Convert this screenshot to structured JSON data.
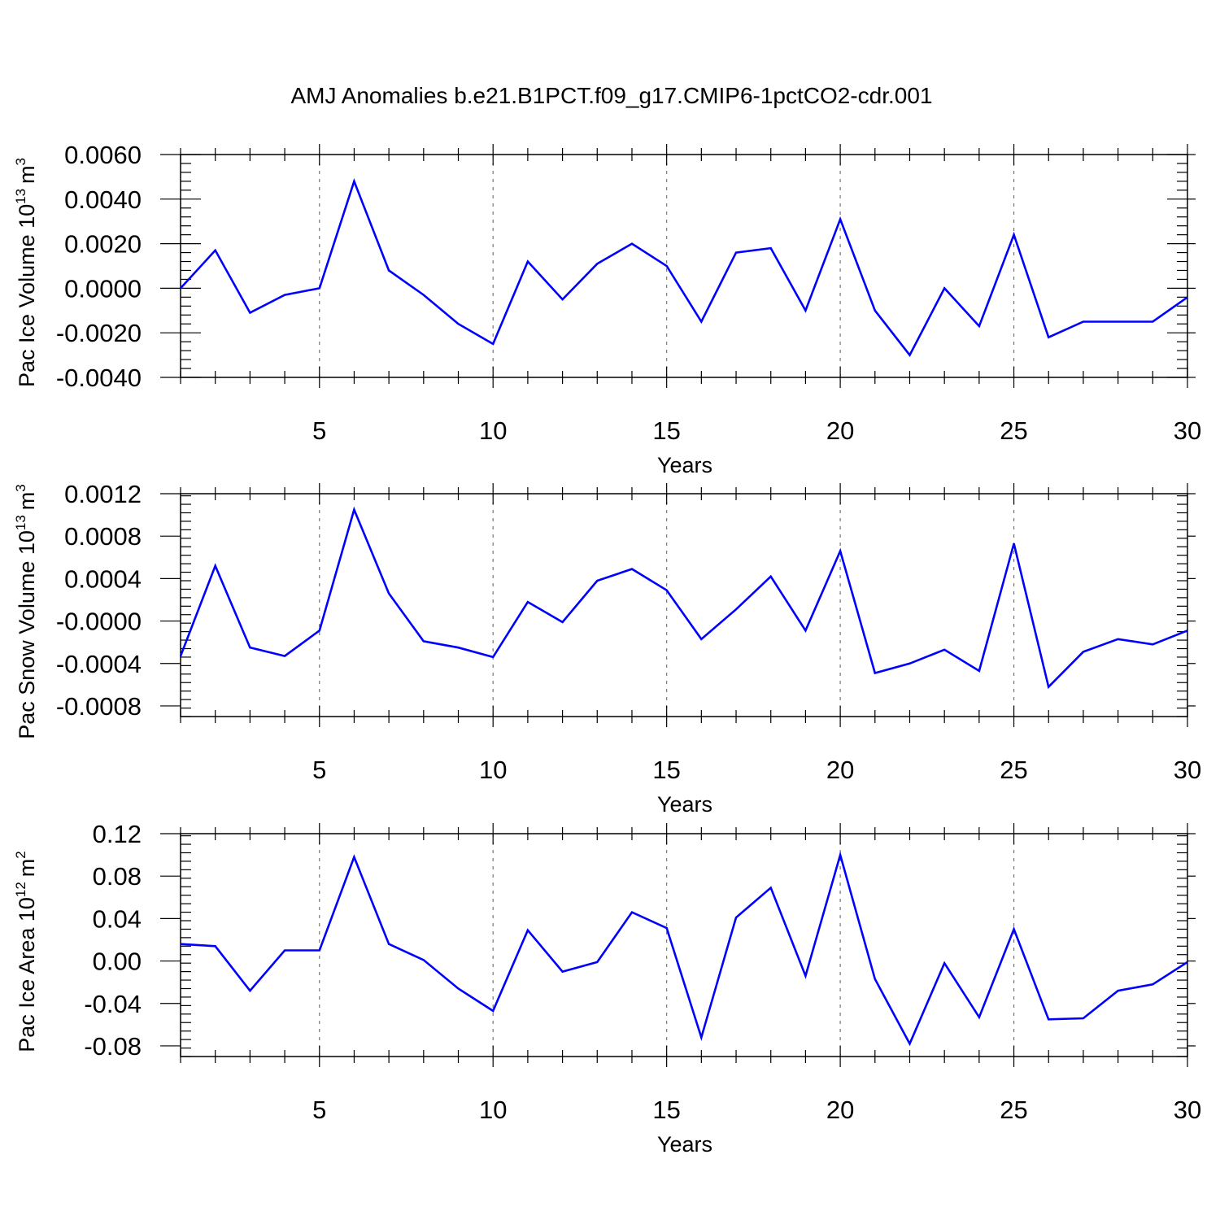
{
  "title": "AMJ Anomalies b.e21.B1PCT.f09_g17.CMIP6-1pctCO2-cdr.001",
  "line_color": "#0000ff",
  "chart_data": [
    {
      "type": "line",
      "ylabel_base": "Pac Ice Volume 10",
      "ylabel_exp": "13",
      "ylabel_unit": "m",
      "ylabel_unit_exp": "3",
      "xlabel": "Years",
      "xlim": [
        1,
        30
      ],
      "ylim": [
        -0.004,
        0.006
      ],
      "xticks": [
        5,
        10,
        15,
        20,
        25,
        30
      ],
      "xtick_labels": [
        "5",
        "10",
        "15",
        "20",
        "25",
        "30"
      ],
      "yticks": [
        -0.004,
        -0.002,
        0.0,
        0.002,
        0.004,
        0.006
      ],
      "ytick_labels": [
        "-0.0040",
        "-0.0020",
        "0.0000",
        "0.0020",
        "0.0040",
        "0.0060"
      ],
      "grid": "vertical dashed at major x ticks",
      "x": [
        1,
        2,
        3,
        4,
        5,
        6,
        7,
        8,
        9,
        10,
        11,
        12,
        13,
        14,
        15,
        16,
        17,
        18,
        19,
        20,
        21,
        22,
        23,
        24,
        25,
        26,
        27,
        28,
        29,
        30
      ],
      "values": [
        0.0,
        0.0017,
        -0.0011,
        -0.0003,
        0.0,
        0.0048,
        0.0008,
        -0.0003,
        -0.0016,
        -0.0025,
        0.0012,
        -0.0005,
        0.0011,
        0.002,
        0.001,
        -0.0015,
        0.0016,
        0.0018,
        -0.001,
        0.0031,
        -0.001,
        -0.003,
        0.0,
        -0.0017,
        0.0024,
        -0.0022,
        -0.0015,
        -0.0015,
        -0.0015,
        -0.0004
      ]
    },
    {
      "type": "line",
      "ylabel_base": "Pac Snow Volume 10",
      "ylabel_exp": "13",
      "ylabel_unit": "m",
      "ylabel_unit_exp": "3",
      "xlabel": "Years",
      "xlim": [
        1,
        30
      ],
      "ylim": [
        -0.0009,
        0.0012
      ],
      "xticks": [
        5,
        10,
        15,
        20,
        25,
        30
      ],
      "xtick_labels": [
        "5",
        "10",
        "15",
        "20",
        "25",
        "30"
      ],
      "yticks": [
        -0.0008,
        -0.0004,
        0.0,
        0.0004,
        0.0008,
        0.0012
      ],
      "ytick_labels": [
        "-0.0008",
        "-0.0004",
        "-0.0000",
        "0.0004",
        "0.0008",
        "0.0012"
      ],
      "grid": "vertical dashed at major x ticks",
      "x": [
        1,
        2,
        3,
        4,
        5,
        6,
        7,
        8,
        9,
        10,
        11,
        12,
        13,
        14,
        15,
        16,
        17,
        18,
        19,
        20,
        21,
        22,
        23,
        24,
        25,
        26,
        27,
        28,
        29,
        30
      ],
      "values": [
        -0.00033,
        0.00052,
        -0.00025,
        -0.00033,
        -9e-05,
        0.00105,
        0.00026,
        -0.00019,
        -0.00025,
        -0.00034,
        0.00018,
        -1e-05,
        0.00038,
        0.00049,
        0.00029,
        -0.00017,
        0.00011,
        0.00042,
        -9e-05,
        0.00066,
        -0.00049,
        -0.0004,
        -0.00027,
        -0.00047,
        0.00073,
        -0.00062,
        -0.00029,
        -0.00017,
        -0.00022,
        -9e-05
      ]
    },
    {
      "type": "line",
      "ylabel_base": "Pac Ice Area 10",
      "ylabel_exp": "12",
      "ylabel_unit": "m",
      "ylabel_unit_exp": "2",
      "xlabel": "Years",
      "xlim": [
        1,
        30
      ],
      "ylim": [
        -0.09,
        0.12
      ],
      "xticks": [
        5,
        10,
        15,
        20,
        25,
        30
      ],
      "xtick_labels": [
        "5",
        "10",
        "15",
        "20",
        "25",
        "30"
      ],
      "yticks": [
        -0.08,
        -0.04,
        0.0,
        0.04,
        0.08,
        0.12
      ],
      "ytick_labels": [
        "-0.08",
        "-0.04",
        "0.00",
        "0.04",
        "0.08",
        "0.12"
      ],
      "grid": "vertical dashed at major x ticks",
      "x": [
        1,
        2,
        3,
        4,
        5,
        6,
        7,
        8,
        9,
        10,
        11,
        12,
        13,
        14,
        15,
        16,
        17,
        18,
        19,
        20,
        21,
        22,
        23,
        24,
        25,
        26,
        27,
        28,
        29,
        30
      ],
      "values": [
        0.016,
        0.014,
        -0.028,
        0.01,
        0.01,
        0.098,
        0.016,
        0.001,
        -0.026,
        -0.047,
        0.029,
        -0.01,
        -0.001,
        0.046,
        0.031,
        -0.072,
        0.041,
        0.069,
        -0.014,
        0.1,
        -0.017,
        -0.078,
        -0.002,
        -0.053,
        0.03,
        -0.055,
        -0.054,
        -0.028,
        -0.022,
        -0.001
      ]
    }
  ]
}
